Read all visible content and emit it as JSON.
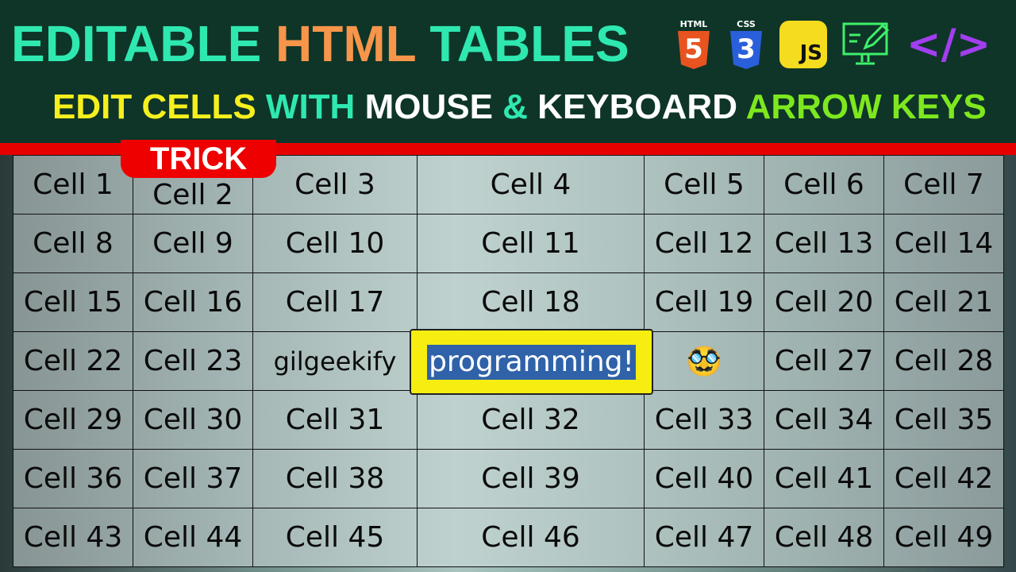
{
  "header": {
    "title_part1": "EDITABLE",
    "title_part2": "HTML",
    "title_part3": "TABLES",
    "subtitle": [
      "EDIT CELLS",
      "WITH",
      "MOUSE",
      "&",
      "KEYBOARD",
      "ARROW KEYS"
    ],
    "icons": [
      {
        "name": "html5-icon",
        "label": "HTML",
        "glyph": "5",
        "color": "#e8531f"
      },
      {
        "name": "css3-icon",
        "label": "CSS",
        "glyph": "3",
        "color": "#2a5fdc"
      },
      {
        "name": "javascript-icon",
        "label": "JS",
        "color": "#f5dc1e"
      },
      {
        "name": "monitor-edit-icon",
        "color": "#3ef06a"
      },
      {
        "name": "code-brackets-icon",
        "label": "</>",
        "color": "#a23ef0"
      }
    ]
  },
  "badge": "TRICK",
  "table": {
    "rows": [
      [
        "Cell 1",
        "Cell 2",
        "Cell 3",
        "Cell 4",
        "Cell 5",
        "Cell 6",
        "Cell 7"
      ],
      [
        "Cell 8",
        "Cell 9",
        "Cell 10",
        "Cell 11",
        "Cell 12",
        "Cell 13",
        "Cell 14"
      ],
      [
        "Cell 15",
        "Cell 16",
        "Cell 17",
        "Cell 18",
        "Cell 19",
        "Cell 20",
        "Cell 21"
      ],
      [
        "Cell 22",
        "Cell 23",
        "gilgeekify",
        "programming!",
        "🥸",
        "Cell 27",
        "Cell 28"
      ],
      [
        "Cell 29",
        "Cell 30",
        "Cell 31",
        "Cell 32",
        "Cell 33",
        "Cell 34",
        "Cell 35"
      ],
      [
        "Cell 36",
        "Cell 37",
        "Cell 38",
        "Cell 39",
        "Cell 40",
        "Cell 41",
        "Cell 42"
      ],
      [
        "Cell 43",
        "Cell 44",
        "Cell 45",
        "Cell 46",
        "Cell 47",
        "Cell 48",
        "Cell 49"
      ]
    ],
    "selected_cell": "programming!"
  },
  "colors": {
    "header_bg": "#0e3528",
    "accent_red": "#e60000",
    "highlight": "#f5ee10",
    "selection": "#2f62a8"
  }
}
